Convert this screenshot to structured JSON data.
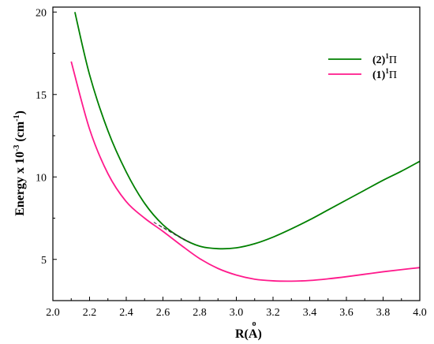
{
  "chart_data": {
    "type": "line",
    "title": "",
    "xlabel": "R(Å)",
    "ylabel": "Energy x 10-3 (cm-1)",
    "ylabel_parts": {
      "base": "Energy x 10",
      "exp1": "-3",
      "unit_open": " (cm",
      "exp2": "-1",
      "unit_close": ")"
    },
    "xlabel_parts": {
      "base": "R(",
      "sym": "A",
      "ring": "o",
      "close": ")"
    },
    "xlim": [
      2.0,
      4.0
    ],
    "ylim": [
      2.5,
      20.3
    ],
    "grid": false,
    "legend_position": "top-right",
    "xticks": [
      2.0,
      2.2,
      2.4,
      2.6,
      2.8,
      3.0,
      3.2,
      3.4,
      3.6,
      3.8,
      4.0
    ],
    "xtick_labels": [
      "2.0",
      "2.2",
      "2.4",
      "2.6",
      "2.8",
      "3.0",
      "3.2",
      "3.4",
      "3.6",
      "3.8",
      "4.0"
    ],
    "yticks": [
      5,
      10,
      15,
      20
    ],
    "ytick_labels": [
      "5",
      "10",
      "15",
      "20"
    ],
    "series": [
      {
        "name": "(2)1Π",
        "legend_parts": {
          "pre": "(2)",
          "sup": "1",
          "post": "Π"
        },
        "color": "#008000",
        "x": [
          2.12,
          2.2,
          2.3,
          2.4,
          2.5,
          2.6,
          2.7,
          2.8,
          2.9,
          3.0,
          3.1,
          3.2,
          3.3,
          3.4,
          3.5,
          3.6,
          3.7,
          3.8,
          3.9,
          4.0
        ],
        "y": [
          20.0,
          16.2,
          12.8,
          10.3,
          8.4,
          7.1,
          6.3,
          5.8,
          5.65,
          5.7,
          5.95,
          6.35,
          6.85,
          7.4,
          8.0,
          8.6,
          9.2,
          9.8,
          10.35,
          10.95
        ]
      },
      {
        "name": "(1)1Π",
        "legend_parts": {
          "pre": "(1)",
          "sup": "1",
          "post": "Π"
        },
        "color": "#ff1a8c",
        "x": [
          2.1,
          2.2,
          2.3,
          2.4,
          2.5,
          2.6,
          2.7,
          2.8,
          2.9,
          3.0,
          3.1,
          3.2,
          3.3,
          3.4,
          3.5,
          3.6,
          3.7,
          3.8,
          3.9,
          4.0
        ],
        "y": [
          17.0,
          12.9,
          10.2,
          8.5,
          7.5,
          6.7,
          5.85,
          5.05,
          4.45,
          4.05,
          3.8,
          3.7,
          3.68,
          3.72,
          3.82,
          3.95,
          4.1,
          4.25,
          4.38,
          4.5
        ]
      }
    ],
    "annotations": [
      {
        "type": "dashed-line",
        "color": "#333333",
        "x": [
          2.55,
          2.76
        ],
        "y": [
          7.25,
          5.95
        ]
      },
      {
        "type": "dashed-line",
        "color": "#333333",
        "x": [
          2.58,
          2.72
        ],
        "y": [
          7.05,
          6.15
        ]
      }
    ]
  }
}
